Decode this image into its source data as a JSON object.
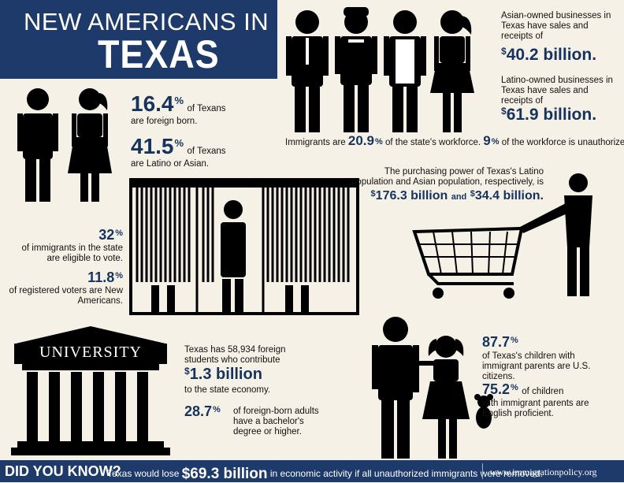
{
  "title": {
    "line1": "NEW AMERICANS IN",
    "line2": "TEXAS"
  },
  "business": {
    "asian_text": "Asian-owned businesses in Texas have sales and receipts of",
    "asian_amount": "40.2 billion.",
    "latino_text": "Latino-owned businesses in Texas have sales and receipts of",
    "latino_amount": "61.9 billion."
  },
  "workforce": {
    "prefix": "Immigrants are",
    "pct1": "20.9",
    "mid": "of the state's workforce.",
    "pct2": "9",
    "suffix": "of the workforce is unauthorized."
  },
  "population": {
    "foreign_born_value": "16.4",
    "foreign_born_label_a": "of Texans",
    "foreign_born_label_b": "are foreign born.",
    "latino_asian_value": "41.5",
    "latino_asian_label_a": "of Texans",
    "latino_asian_label_b": "are Latino or Asian."
  },
  "purchasing": {
    "text": "The purchasing power of Texas's Latino population and Asian population, respectively, is",
    "amount1": "176.3 billion",
    "and": "and",
    "amount2": "34.4 billion."
  },
  "voting": {
    "eligible_value": "32",
    "eligible_label": "of immigrants in the state are eligible to vote.",
    "registered_value": "11.8",
    "registered_label": "of registered voters are New Americans."
  },
  "university": {
    "sign": "UNIVERSITY",
    "students_text": "Texas has 58,934 foreign students who contribute",
    "amount": "1.3 billion",
    "economy": "to the state economy.",
    "bachelor_value": "28.7",
    "bachelor_label": "of foreign-born adults have a bachelor's degree or higher."
  },
  "children": {
    "citizens_value": "87.7",
    "citizens_label": "of Texas's children with immigrant parents are U.S. citizens.",
    "english_value": "75.2",
    "english_label_a": "of children",
    "english_label_b": "with immigrant parents are English proficient."
  },
  "footer": {
    "did_you_know": "DID YOU KNOW?",
    "pre": "Texas would lose",
    "amount": "$69.3 billion",
    "post": "in economic activity if all unauthorized immigrants were removed.",
    "url": "www.immigrationpolicy.org"
  },
  "symbols": {
    "percent": "%",
    "dollar": "$"
  },
  "colors": {
    "navy": "#1d3a6a",
    "accent_text": "#16335f",
    "background": "#f5f1e6"
  }
}
